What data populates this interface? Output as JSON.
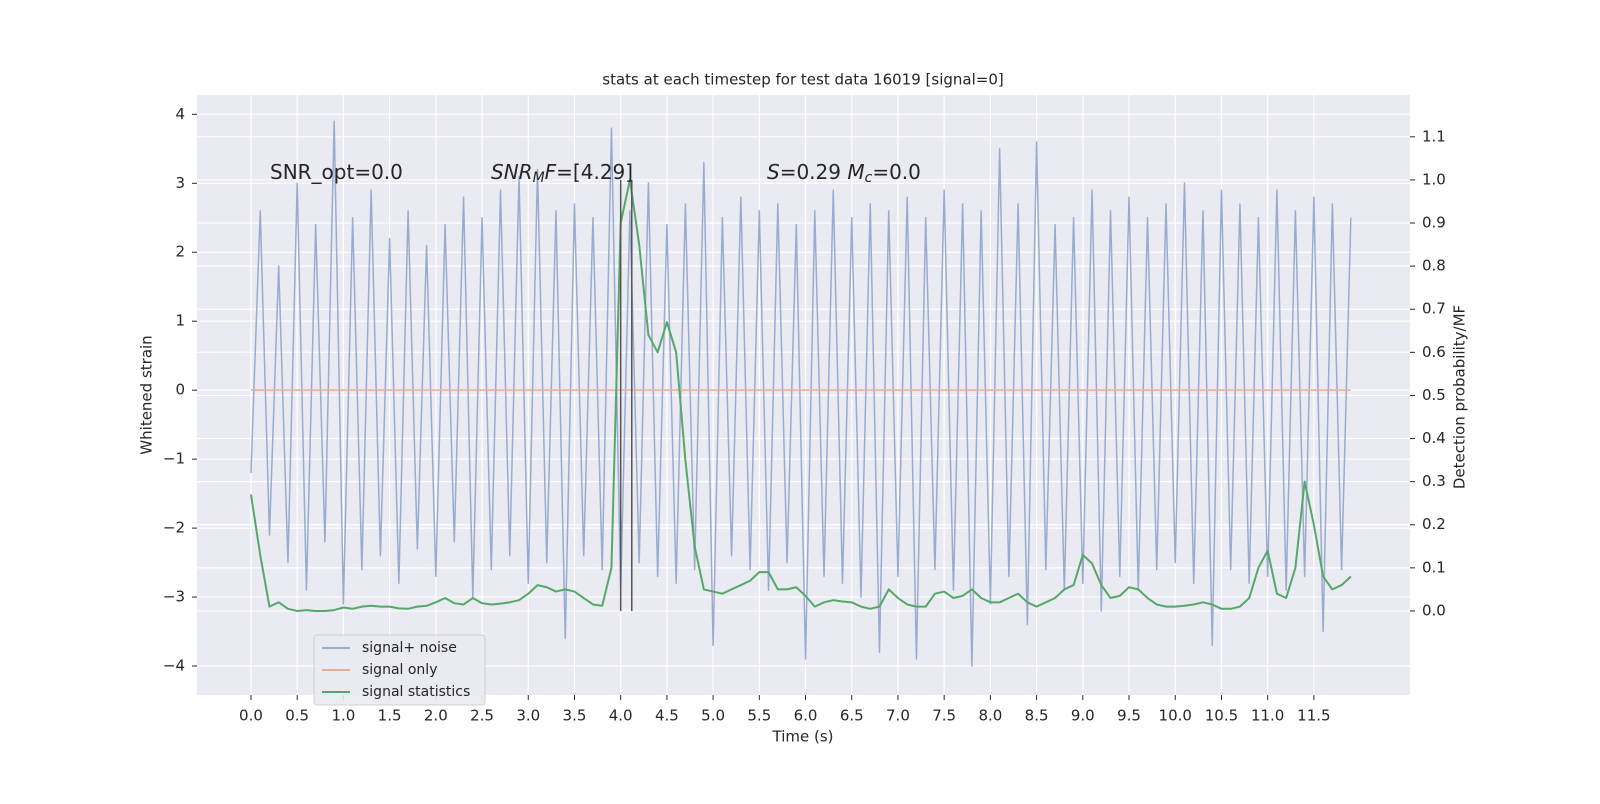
{
  "chart_data": {
    "type": "line",
    "title": "stats at each timestep for test data 16019 [signal=0]",
    "xlabel": "Time (s)",
    "ylabel": "Whitened strain",
    "y2label": "Detection probability/MF",
    "background": "#eaeaf2",
    "grid": true,
    "legend": "lower left",
    "xlim": [
      -0.584,
      12.54
    ],
    "ylim": [
      -4.42,
      4.28
    ],
    "y2lim": [
      -0.195,
      1.197
    ],
    "xticks": [
      {
        "value": 0,
        "label": "0.0"
      },
      0.5,
      {
        "value": 1,
        "label": "1.0"
      },
      1.5,
      {
        "value": 2,
        "label": "2.0"
      },
      2.5,
      {
        "value": 3,
        "label": "3.0"
      },
      3.5,
      {
        "value": 4,
        "label": "4.0"
      },
      4.5,
      {
        "value": 5,
        "label": "5.0"
      },
      5.5,
      {
        "value": 6,
        "label": "6.0"
      },
      6.5,
      {
        "value": 7,
        "label": "7.0"
      },
      7.5,
      {
        "value": 8,
        "label": "8.0"
      },
      8.5,
      {
        "value": 9,
        "label": "9.0"
      },
      9.5,
      {
        "value": 10,
        "label": "10.0"
      },
      10.5,
      {
        "value": 11,
        "label": "11.0"
      },
      11.5
    ],
    "yticks": [
      {
        "value": -4,
        "label": "−4"
      },
      {
        "value": -3,
        "label": "−3"
      },
      {
        "value": -2,
        "label": "−2"
      },
      {
        "value": -1,
        "label": "−1"
      },
      0,
      1,
      2,
      3,
      4
    ],
    "y2ticks": [
      {
        "value": 0,
        "label": "0.0"
      },
      0.1,
      0.2,
      0.3,
      0.4,
      0.5,
      0.6,
      0.7,
      0.8,
      0.9,
      {
        "value": 1,
        "label": "1.0"
      },
      1.1
    ],
    "x": [
      0,
      0.1,
      0.2,
      0.3,
      0.4,
      0.5,
      0.6,
      0.7,
      0.8,
      0.9,
      1,
      1.1,
      1.2,
      1.3,
      1.4,
      1.5,
      1.6,
      1.7,
      1.8,
      1.9,
      2,
      2.1,
      2.2,
      2.3,
      2.4,
      2.5,
      2.6,
      2.7,
      2.8,
      2.9,
      3,
      3.1,
      3.2,
      3.3,
      3.4,
      3.5,
      3.6,
      3.7,
      3.8,
      3.9,
      4,
      4.1,
      4.2,
      4.3,
      4.4,
      4.5,
      4.6,
      4.7,
      4.8,
      4.9,
      5,
      5.1,
      5.2,
      5.3,
      5.4,
      5.5,
      5.6,
      5.7,
      5.8,
      5.9,
      6,
      6.1,
      6.2,
      6.3,
      6.4,
      6.5,
      6.6,
      6.7,
      6.8,
      6.9,
      7,
      7.1,
      7.2,
      7.3,
      7.4,
      7.5,
      7.6,
      7.7,
      7.8,
      7.9,
      8,
      8.1,
      8.2,
      8.3,
      8.4,
      8.5,
      8.6,
      8.7,
      8.8,
      8.9,
      9,
      9.1,
      9.2,
      9.3,
      9.4,
      9.5,
      9.6,
      9.7,
      9.8,
      9.9,
      10,
      10.1,
      10.2,
      10.3,
      10.4,
      10.5,
      10.6,
      10.7,
      10.8,
      10.9,
      11,
      11.1,
      11.2,
      11.3,
      11.4,
      11.5,
      11.6,
      11.7,
      11.8,
      11.9
    ],
    "series": [
      {
        "name": "signal+ noise",
        "color": "#9aabd0",
        "axis": "y",
        "values": [
          -1.2,
          2.6,
          -2.1,
          1.8,
          -2.5,
          3.0,
          -2.9,
          2.4,
          -2.2,
          3.9,
          -3.1,
          2.5,
          -2.6,
          2.9,
          -2.4,
          2.2,
          -2.8,
          2.6,
          -2.3,
          2.1,
          -2.7,
          2.4,
          -2.2,
          2.8,
          -3.0,
          2.5,
          -2.6,
          2.9,
          -2.4,
          3.1,
          -2.8,
          3.2,
          -2.5,
          2.6,
          -3.6,
          2.7,
          -2.4,
          2.5,
          -2.6,
          3.8,
          -2.9,
          2.6,
          -2.5,
          3.0,
          -2.7,
          2.4,
          -2.8,
          2.7,
          -2.6,
          3.3,
          -3.7,
          2.5,
          -2.4,
          2.8,
          -2.6,
          2.6,
          -2.9,
          2.7,
          -2.5,
          2.4,
          -3.9,
          2.6,
          -2.7,
          2.9,
          -2.8,
          2.5,
          -3.0,
          2.7,
          -3.8,
          2.6,
          -2.7,
          2.8,
          -3.9,
          2.5,
          -2.6,
          2.9,
          -2.9,
          2.7,
          -4.0,
          2.6,
          -3.1,
          3.5,
          -2.7,
          2.7,
          -3.4,
          3.6,
          -2.6,
          2.4,
          -2.9,
          2.5,
          -2.8,
          2.9,
          -3.2,
          2.6,
          -2.7,
          2.8,
          -2.9,
          2.5,
          -2.6,
          2.7,
          -2.5,
          3.0,
          -2.8,
          2.6,
          -3.7,
          2.9,
          -2.6,
          2.7,
          -2.8,
          2.5,
          -2.7,
          2.9,
          -2.9,
          2.6,
          -2.7,
          2.8,
          -3.5,
          2.7,
          -2.6,
          2.5
        ]
      },
      {
        "name": "signal only",
        "color": "#e6ad97",
        "axis": "y",
        "values": [
          0,
          0,
          0,
          0,
          0,
          0,
          0,
          0,
          0,
          0,
          0,
          0,
          0,
          0,
          0,
          0,
          0,
          0,
          0,
          0,
          0,
          0,
          0,
          0,
          0,
          0,
          0,
          0,
          0,
          0,
          0,
          0,
          0,
          0,
          0,
          0,
          0,
          0,
          0,
          0,
          0,
          0,
          0,
          0,
          0,
          0,
          0,
          0,
          0,
          0,
          0,
          0,
          0,
          0,
          0,
          0,
          0,
          0,
          0,
          0,
          0,
          0,
          0,
          0,
          0,
          0,
          0,
          0,
          0,
          0,
          0,
          0,
          0,
          0,
          0,
          0,
          0,
          0,
          0,
          0,
          0,
          0,
          0,
          0,
          0,
          0,
          0,
          0,
          0,
          0,
          0,
          0,
          0,
          0,
          0,
          0,
          0,
          0,
          0,
          0,
          0,
          0,
          0,
          0,
          0,
          0,
          0,
          0,
          0,
          0,
          0,
          0,
          0,
          0,
          0,
          0,
          0,
          0,
          0,
          0
        ]
      },
      {
        "name": "signal statistics",
        "color": "#55a868",
        "axis": "y2",
        "values": [
          0.27,
          0.13,
          0.01,
          0.02,
          0.005,
          0,
          0.002,
          0,
          0,
          0.002,
          0.008,
          0.005,
          0.01,
          0.012,
          0.01,
          0.01,
          0.006,
          0.005,
          0.01,
          0.012,
          0.02,
          0.03,
          0.018,
          0.015,
          0.03,
          0.018,
          0.015,
          0.017,
          0.02,
          0.025,
          0.04,
          0.06,
          0.055,
          0.045,
          0.05,
          0.045,
          0.03,
          0.015,
          0.012,
          0.1,
          0.9,
          1.0,
          0.85,
          0.64,
          0.6,
          0.67,
          0.6,
          0.35,
          0.15,
          0.05,
          0.045,
          0.04,
          0.05,
          0.06,
          0.07,
          0.09,
          0.09,
          0.05,
          0.05,
          0.055,
          0.035,
          0.01,
          0.02,
          0.025,
          0.022,
          0.02,
          0.01,
          0.005,
          0.01,
          0.05,
          0.03,
          0.015,
          0.01,
          0.01,
          0.04,
          0.045,
          0.03,
          0.035,
          0.05,
          0.03,
          0.02,
          0.02,
          0.03,
          0.04,
          0.02,
          0.01,
          0.02,
          0.03,
          0.05,
          0.06,
          0.13,
          0.11,
          0.06,
          0.03,
          0.035,
          0.055,
          0.05,
          0.03,
          0.015,
          0.01,
          0.01,
          0.012,
          0.015,
          0.02,
          0.015,
          0.005,
          0.005,
          0.01,
          0.03,
          0.1,
          0.14,
          0.04,
          0.03,
          0.1,
          0.3,
          0.2,
          0.08,
          0.05,
          0.06,
          0.08
        ]
      }
    ],
    "vlines": {
      "x": [
        4.0,
        4.12
      ],
      "y2": [
        0,
        1.0
      ],
      "color": "#555555"
    },
    "annotations": [
      [
        {
          "text": "SNR_opt=0.0"
        }
      ],
      [
        {
          "text": "SNR",
          "italic": true
        },
        {
          "text": "M",
          "italic": true,
          "sub": true
        },
        {
          "text": "F",
          "italic": true
        },
        {
          "text": "=[4.29]"
        }
      ],
      [
        {
          "text": "S",
          "italic": true
        },
        {
          "text": "=0.29   "
        },
        {
          "text": "M",
          "italic": true
        },
        {
          "text": "c",
          "italic": true,
          "sub": true
        },
        {
          "text": "=0.0"
        }
      ]
    ]
  }
}
